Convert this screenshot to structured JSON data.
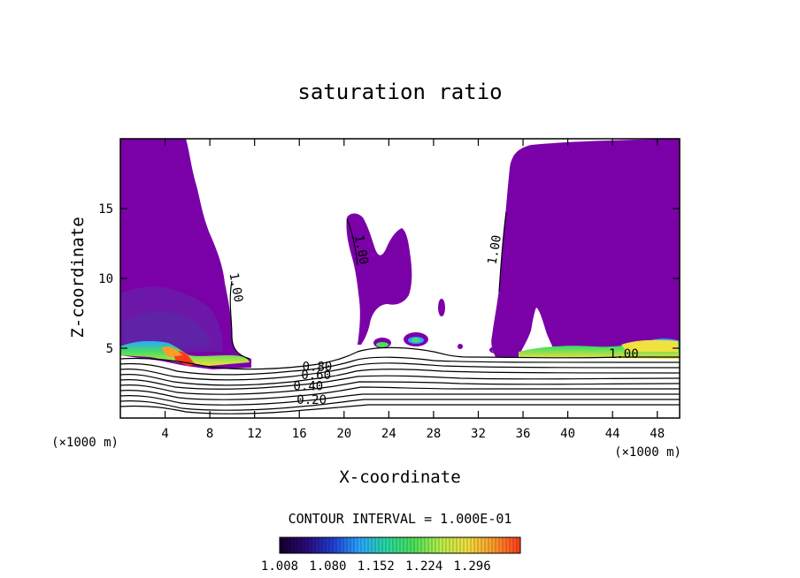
{
  "chart_data": {
    "type": "heatmap",
    "title": "saturation ratio",
    "xlabel": "X-coordinate",
    "ylabel": "Z-coordinate",
    "x_unit_left": "(×1000 m)",
    "x_unit_right": "(×1000 m)",
    "xlim": [
      0,
      50
    ],
    "ylim": [
      0,
      20
    ],
    "x_ticks": [
      4,
      8,
      12,
      16,
      20,
      24,
      28,
      32,
      36,
      40,
      44,
      48
    ],
    "y_ticks": [
      5,
      10,
      15
    ],
    "contour_interval_text": "CONTOUR INTERVAL = 1.000E-01",
    "colorbar": {
      "min": 1.008,
      "max": 1.368,
      "labels": [
        "1.008",
        "1.080",
        "1.152",
        "1.224",
        "1.296"
      ],
      "colors": [
        "#12002a",
        "#2a0a7a",
        "#1f3fd0",
        "#2aa7ff",
        "#28d8a0",
        "#49e05a",
        "#b6ef4a",
        "#f0e040",
        "#ff9a2a",
        "#ff3a1a"
      ]
    },
    "fill_color": "#7a00a8",
    "contour_levels": [
      {
        "label": "0.20",
        "z": 1.1
      },
      {
        "label": "0.40",
        "z": 2.0
      },
      {
        "label": "0.60",
        "z": 2.8
      },
      {
        "label": "0.80",
        "z": 3.4
      },
      {
        "label": "1.00",
        "z": 4.4
      }
    ],
    "contour_labels": [
      {
        "text": "0.20",
        "x": 17.1,
        "z": 1.0
      },
      {
        "text": "0.40",
        "x": 16.8,
        "z": 2.0
      },
      {
        "text": "0.60",
        "x": 17.5,
        "z": 2.8
      },
      {
        "text": "0.80",
        "x": 17.6,
        "z": 3.4
      },
      {
        "text": "1.00",
        "x": 10.0,
        "z": 9.3,
        "rotate": 80
      },
      {
        "text": "1.00",
        "x": 21.2,
        "z": 12.0,
        "rotate": 80
      },
      {
        "text": "1.00",
        "x": 33.8,
        "z": 12.0,
        "rotate": -80
      },
      {
        "text": "1.00",
        "x": 45.0,
        "z": 4.3
      }
    ]
  }
}
